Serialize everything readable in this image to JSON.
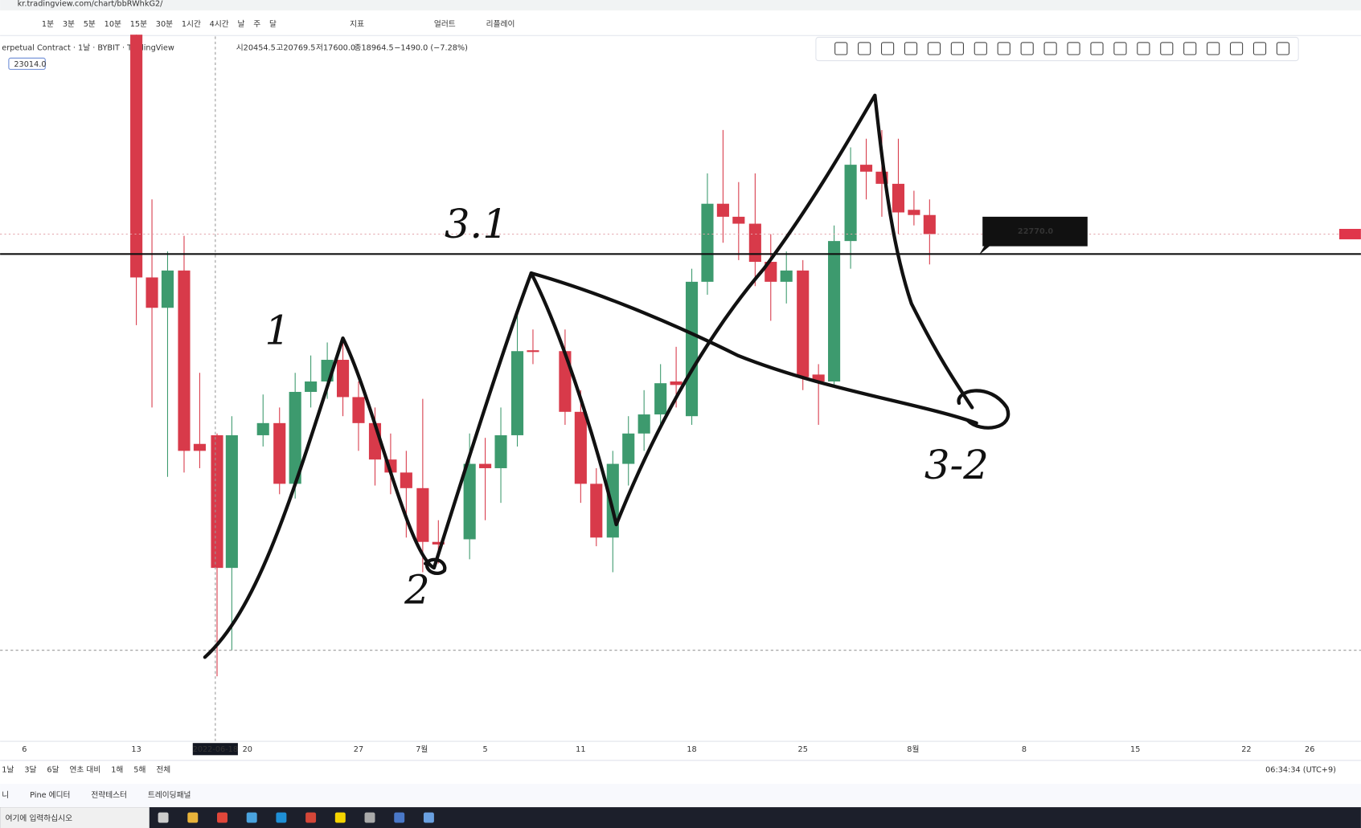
{
  "browser": {
    "url": "kr.tradingview.com/chart/bbRWhkG2/"
  },
  "toolbar": {
    "intervals": [
      "1분",
      "3분",
      "5분",
      "10분",
      "15분",
      "30분",
      "1시간",
      "4시간",
      "날",
      "주",
      "달"
    ],
    "indicators": "지표",
    "alerts": "얼러트",
    "replay": "리플레이"
  },
  "legend": {
    "symbol": "erpetual Contract · 1날 · BYBIT · TradingView",
    "open": "시20454.5",
    "high": "고20769.5",
    "low": "저17600.0",
    "close": "종18964.5",
    "change": "−1490.0 (−7.28%)",
    "badge": "23014.0"
  },
  "price_line_label": "22770.0",
  "x_axis": {
    "labels": [
      "6",
      "13",
      "20",
      "27",
      "7월",
      "5",
      "11",
      "18",
      "25",
      "8월",
      "8",
      "15",
      "22",
      "26"
    ],
    "crosshair": "2022-06-18"
  },
  "range_bar": {
    "ranges": [
      "1날",
      "3달",
      "6달",
      "연초 대비",
      "1해",
      "5해",
      "전체"
    ],
    "clock": "06:34:34 (UTC+9)"
  },
  "bottom_tabs": [
    "니",
    "Pine 에디터",
    "전략테스터",
    "트레이딩패널"
  ],
  "taskbar": {
    "search": "여기에 입력하십시오"
  },
  "annotations": [
    "1",
    "3.1",
    "2",
    "3-2"
  ]
}
